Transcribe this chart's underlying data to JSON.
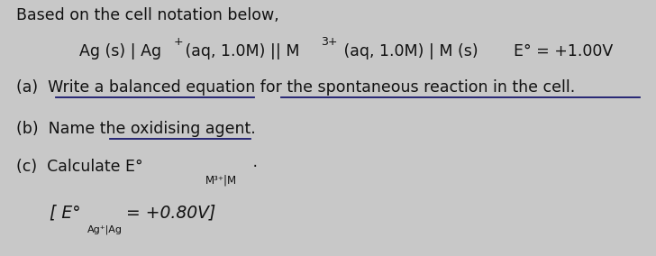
{
  "bg_color": "#c8c8c8",
  "text_color": "#111111",
  "underline_color": "#1a1a6e",
  "fig_w": 7.28,
  "fig_h": 2.84,
  "dpi": 100,
  "fs_main": 12.5,
  "fs_super": 9,
  "fs_sub": 8.5,
  "line1": "Based on the cell notation below,",
  "cell_part1": "Ag (s) | Ag",
  "cell_sup1": "+",
  "cell_part2": " (aq, 1.0M) || M",
  "cell_sup2": "3+",
  "cell_part3": " (aq, 1.0M) | M (s)",
  "emf": "E° = +1.00V",
  "qa": "(a)  Write a balanced equation for the spontaneous reaction in the cell.",
  "qb": "(b)  Name the oxidising agent.",
  "qc_main": "(c)  Calculate E°",
  "qc_sub": "M³⁺|M",
  "qc_dot": " ·",
  "hint_main": "[ E°",
  "hint_sub": "Ag⁺|Ag",
  "hint_end": "= +0.80V]"
}
